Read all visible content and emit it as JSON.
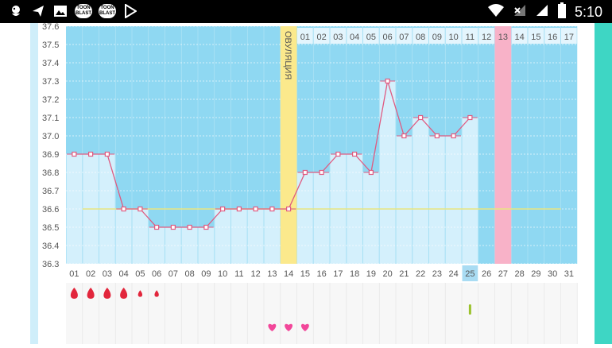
{
  "statusbar": {
    "time": "5:10",
    "left_icons": [
      "app-bird-icon",
      "send-icon",
      "gallery-icon",
      "toon-blast-icon",
      "toon-blast-icon",
      "play-store-icon"
    ],
    "toon_label": "TOON BLAST",
    "right_icons": [
      "wifi-icon",
      "signal-off-icon",
      "signal-icon",
      "battery-icon"
    ]
  },
  "chart_data": {
    "type": "line",
    "ylim": [
      36.3,
      37.6
    ],
    "y_ticks": [
      "37.6",
      "37.5",
      "37.4",
      "37.3",
      "37.2",
      "37.1",
      "37.0",
      "36.9",
      "36.8",
      "36.7",
      "36.6",
      "36.5",
      "36.4",
      "36.3"
    ],
    "x_labels": [
      "01",
      "02",
      "03",
      "04",
      "05",
      "06",
      "07",
      "08",
      "09",
      "10",
      "11",
      "12",
      "13",
      "14",
      "15",
      "16",
      "17",
      "18",
      "19",
      "20",
      "21",
      "22",
      "23",
      "24",
      "25",
      "26",
      "27",
      "28",
      "29",
      "30",
      "31"
    ],
    "top_labels": [
      "01",
      "02",
      "03",
      "04",
      "05",
      "06",
      "07",
      "08",
      "09",
      "10",
      "11",
      "12",
      "13",
      "14",
      "15",
      "16",
      "17"
    ],
    "values": [
      36.9,
      36.9,
      36.9,
      36.6,
      36.6,
      36.5,
      36.5,
      36.5,
      36.5,
      36.6,
      36.6,
      36.6,
      36.6,
      36.6,
      36.8,
      36.8,
      36.9,
      36.9,
      36.8,
      37.3,
      37.0,
      37.1,
      37.0,
      37.0,
      37.1,
      null,
      null,
      null,
      null,
      null,
      null
    ],
    "coverline": 36.6,
    "ovulation_day": 14,
    "ovulation_label": "ОВУЛЯЦИЯ",
    "highlight_top_label": "13",
    "today": "25",
    "period_days": [
      1,
      2,
      3,
      4,
      5,
      6
    ],
    "period_sizes": [
      "big",
      "big",
      "big",
      "big",
      "small",
      "small"
    ],
    "intercourse_days": [
      13,
      14,
      15
    ],
    "test_days": [
      25
    ],
    "colors": {
      "sky": "#8fd8f2",
      "bar": "#d4f0fc",
      "line": "#e05a80",
      "ovulation": "#fbe98c",
      "highlight": "#f8b2c8",
      "coverline": "#e8e680",
      "drop": "#e2263c",
      "heart": "#f2479a",
      "test": "#9bc22c"
    }
  }
}
